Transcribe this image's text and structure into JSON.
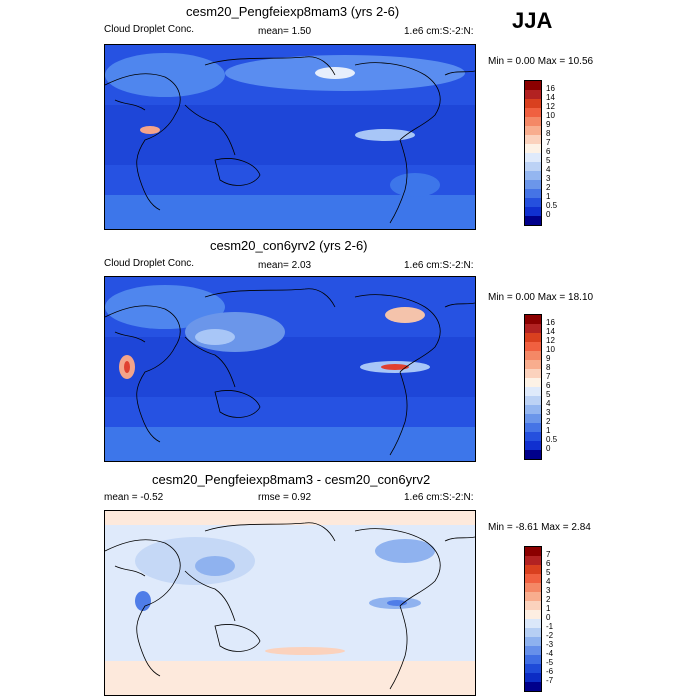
{
  "season": "JJA",
  "panels": [
    {
      "title": "cesm20_Pengfeiexp8mam3 (yrs 2-6)",
      "left_label": "Cloud Droplet Conc.",
      "mid_label": "mean=   1.50",
      "units_label": "1.e6 cm:S:-2:N:",
      "minmax": "Min =   0.00 Max =  10.56",
      "colorbar_labels": [
        "16",
        "14",
        "12",
        "10",
        "9",
        "8",
        "7",
        "6",
        "5",
        "4",
        "3",
        "2",
        "1",
        "0.5",
        "0"
      ],
      "colorbar_colors": [
        "#8b0000",
        "#b22222",
        "#d9401f",
        "#f06040",
        "#f48866",
        "#f8ad8e",
        "#fbd2bd",
        "#fdf2e6",
        "#dfeafb",
        "#bcd2f5",
        "#94b6f0",
        "#6b96ea",
        "#4574e6",
        "#2550de",
        "#1030d0",
        "#00008b"
      ]
    },
    {
      "title": "cesm20_con6yrv2 (yrs 2-6)",
      "left_label": "Cloud Droplet Conc.",
      "mid_label": "mean=   2.03",
      "units_label": "1.e6 cm:S:-2:N:",
      "minmax": "Min =   0.00 Max =  18.10",
      "colorbar_labels": [
        "16",
        "14",
        "12",
        "10",
        "9",
        "8",
        "7",
        "6",
        "5",
        "4",
        "3",
        "2",
        "1",
        "0.5",
        "0"
      ],
      "colorbar_colors": [
        "#8b0000",
        "#b22222",
        "#d9401f",
        "#f06040",
        "#f48866",
        "#f8ad8e",
        "#fbd2bd",
        "#fdf2e6",
        "#dfeafb",
        "#bcd2f5",
        "#94b6f0",
        "#6b96ea",
        "#4574e6",
        "#2550de",
        "#1030d0",
        "#00008b"
      ]
    },
    {
      "title": "cesm20_Pengfeiexp8mam3 - cesm20_con6yrv2",
      "left_label": "mean =  -0.52",
      "mid_label": "rmse =   0.92",
      "units_label": "1.e6 cm:S:-2:N:",
      "minmax": "Min =  -8.61 Max =   2.84",
      "colorbar_labels": [
        "7",
        "6",
        "5",
        "4",
        "3",
        "2",
        "1",
        "0",
        "-1",
        "-2",
        "-3",
        "-4",
        "-5",
        "-6",
        "-7"
      ],
      "colorbar_colors": [
        "#8b0000",
        "#b22222",
        "#d9401f",
        "#f06040",
        "#f48866",
        "#f8ad8e",
        "#fbd2bd",
        "#fdeee2",
        "#dbe8fa",
        "#b6cff4",
        "#8eb2ef",
        "#6690ea",
        "#3f6ee4",
        "#1f4bd8",
        "#0c2cc4",
        "#00008b"
      ]
    }
  ],
  "map_colors": {
    "panel1": [
      "#2a5ee6",
      "#3d76ea",
      "#1e46d8",
      "#5a8df0",
      "#a8c6f7",
      "#e6eefc",
      "#f4a48a"
    ],
    "panel2": [
      "#2a5ee6",
      "#3d76ea",
      "#1e46d8",
      "#5a8df0",
      "#a8c6f7",
      "#f4c3ab",
      "#e04030"
    ],
    "panel3": [
      "#dfeafb",
      "#fde9dc",
      "#8fb2ef",
      "#4f7de8",
      "#c5d8f6",
      "#fbd2bd"
    ]
  }
}
